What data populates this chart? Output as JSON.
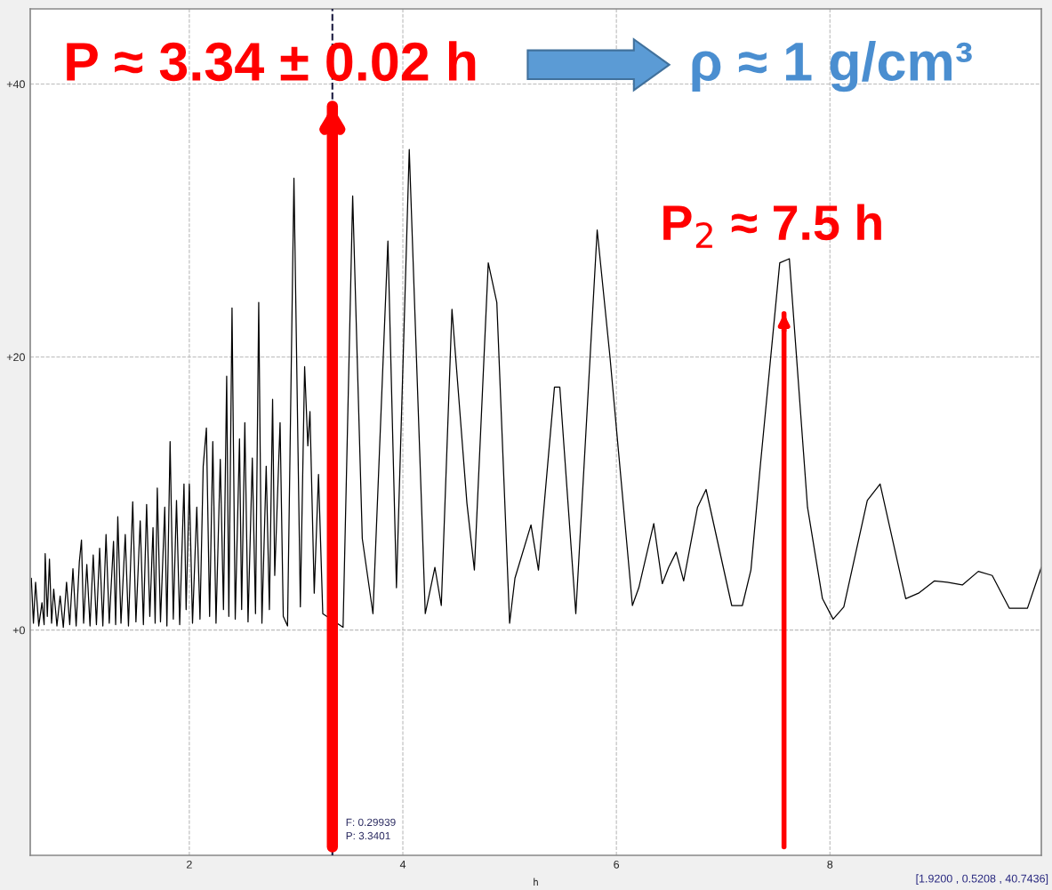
{
  "chart_data": {
    "type": "line",
    "xlabel": "h",
    "x": [
      0.52,
      0.54,
      0.56,
      0.59,
      0.62,
      0.64,
      0.65,
      0.67,
      0.69,
      0.71,
      0.73,
      0.76,
      0.79,
      0.82,
      0.85,
      0.88,
      0.91,
      0.94,
      0.97,
      0.99,
      1.01,
      1.04,
      1.07,
      1.1,
      1.13,
      1.16,
      1.19,
      1.22,
      1.25,
      1.29,
      1.31,
      1.33,
      1.36,
      1.4,
      1.43,
      1.47,
      1.5,
      1.54,
      1.57,
      1.6,
      1.63,
      1.66,
      1.68,
      1.7,
      1.73,
      1.77,
      1.79,
      1.82,
      1.85,
      1.88,
      1.91,
      1.95,
      1.97,
      2.0,
      2.03,
      2.07,
      2.1,
      2.13,
      2.16,
      2.19,
      2.22,
      2.25,
      2.29,
      2.32,
      2.35,
      2.37,
      2.4,
      2.43,
      2.47,
      2.49,
      2.52,
      2.55,
      2.59,
      2.62,
      2.65,
      2.68,
      2.72,
      2.75,
      2.78,
      2.8,
      2.85,
      2.88,
      2.92,
      2.98,
      3.04,
      3.08,
      3.11,
      3.13,
      3.17,
      3.21,
      3.25,
      3.3,
      3.36,
      3.44,
      3.53,
      3.62,
      3.72,
      3.86,
      3.94,
      4.06,
      4.21,
      4.3,
      4.36,
      4.46,
      4.6,
      4.67,
      4.8,
      4.88,
      5.0,
      5.05,
      5.2,
      5.27,
      5.42,
      5.47,
      5.62,
      5.82,
      5.94,
      6.15,
      6.21,
      6.35,
      6.43,
      6.49,
      6.56,
      6.63,
      6.76,
      6.84,
      7.08,
      7.18,
      7.26,
      7.35,
      7.53,
      7.62,
      7.79,
      7.93,
      8.03,
      8.13,
      8.35,
      8.47,
      8.71,
      8.83,
      8.98,
      9.1,
      9.24,
      9.39,
      9.52,
      9.68,
      9.85,
      9.98
    ],
    "series": [
      {
        "color": "#000000",
        "values": [
          3.8,
          0.5,
          3.5,
          0.3,
          2.0,
          0.4,
          5.6,
          1.0,
          5.2,
          0.5,
          3.0,
          0.3,
          2.5,
          0.2,
          3.5,
          0.4,
          4.5,
          0.3,
          5.0,
          6.6,
          0.5,
          4.8,
          0.3,
          5.5,
          0.4,
          6.0,
          0.3,
          7.0,
          0.5,
          6.5,
          0.4,
          8.3,
          0.5,
          7.0,
          0.3,
          9.4,
          0.6,
          8.0,
          0.4,
          9.2,
          1.0,
          7.5,
          0.5,
          10.4,
          0.6,
          9.0,
          0.3,
          13.8,
          0.8,
          9.5,
          0.4,
          10.7,
          1.5,
          10.7,
          0.5,
          9.0,
          0.8,
          12.0,
          14.8,
          1.0,
          13.8,
          0.5,
          12.5,
          1.5,
          18.6,
          1.0,
          23.6,
          0.8,
          14.0,
          1.5,
          15.2,
          0.6,
          12.6,
          1.2,
          24.0,
          0.5,
          12.0,
          1.5,
          16.9,
          4.0,
          15.2,
          1.0,
          0.3,
          33.1,
          1.7,
          19.3,
          13.5,
          16.0,
          2.7,
          11.4,
          1.2,
          null,
          null,
          0.2,
          31.8,
          6.7,
          1.2,
          28.5,
          3.1,
          35.2,
          1.2,
          4.6,
          1.8,
          23.5,
          9.3,
          4.4,
          26.9,
          24.0,
          0.5,
          3.8,
          7.7,
          4.4,
          17.8,
          17.8,
          1.2,
          29.3,
          20.0,
          1.8,
          3.1,
          7.8,
          3.4,
          4.6,
          5.7,
          3.6,
          9.0,
          10.3,
          1.8,
          1.8,
          4.4,
          12.2,
          26.9,
          27.2,
          9.0,
          2.3,
          0.8,
          1.7,
          9.5,
          10.7,
          2.3,
          2.7,
          3.6,
          3.5,
          3.3,
          4.3,
          4.0,
          1.6,
          1.6,
          4.6
        ]
      }
    ],
    "xlim": [
      0.51,
      9.98
    ],
    "ylim": [
      -16.5,
      45.5
    ],
    "xticks": [
      2,
      4,
      6,
      8
    ],
    "yticks": [
      {
        "value": 0,
        "label": "+0"
      },
      {
        "value": 20,
        "label": "+20"
      },
      {
        "value": 40,
        "label": "+40"
      }
    ],
    "grid": true,
    "line_style": "solid",
    "marker": "none",
    "ref_lines": [
      {
        "axis": "x",
        "value": 3.34,
        "color": "#1a1a40",
        "line_style": "dashed"
      },
      {
        "axis": "x",
        "value": 3.34,
        "color": "#ff0000",
        "line_style": "solid"
      },
      {
        "axis": "x",
        "value": 7.57,
        "color": "#ff0000",
        "line_style": "solid"
      }
    ],
    "annotations": [
      "P ≈ 3.34 ± 0.02 h",
      "ρ ≈ 1 g/cm³",
      "P$_{2}$ ≈ 7.5 h",
      "F: 0.29939",
      "P: 3.3401",
      "[1.9200 , 0.5208 , 40.7436]"
    ]
  }
}
